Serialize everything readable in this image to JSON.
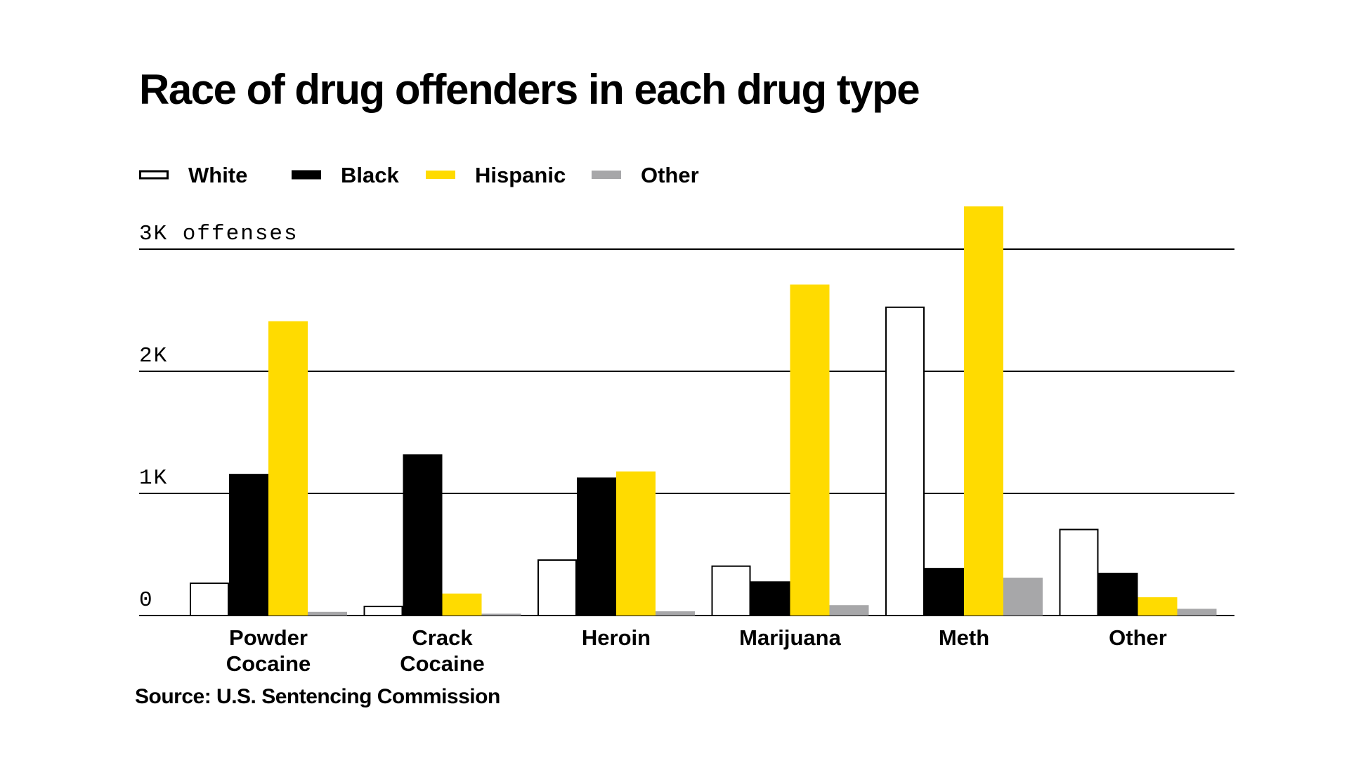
{
  "chart_data": {
    "type": "bar",
    "title": "Race of drug offenders in each drug type",
    "source": "Source: U.S. Sentencing Commission",
    "categories": [
      "Powder Cocaine",
      "Crack Cocaine",
      "Heroin",
      "Marijuana",
      "Meth",
      "Other"
    ],
    "series": [
      {
        "name": "White",
        "color": "#ffffff",
        "stroke": "#000000",
        "values": [
          270,
          80,
          460,
          410,
          2530,
          710
        ]
      },
      {
        "name": "Black",
        "color": "#000000",
        "stroke": "#000000",
        "values": [
          1160,
          1320,
          1130,
          280,
          390,
          350
        ]
      },
      {
        "name": "Hispanic",
        "color": "#ffdb00",
        "stroke": "none",
        "values": [
          2410,
          180,
          1180,
          2710,
          3350,
          150
        ]
      },
      {
        "name": "Other",
        "color": "#a7a7a9",
        "stroke": "none",
        "values": [
          30,
          15,
          35,
          85,
          310,
          55
        ]
      }
    ],
    "y_ticks": [
      {
        "value": 0,
        "label": "0"
      },
      {
        "value": 1000,
        "label": "1K"
      },
      {
        "value": 2000,
        "label": "2K"
      },
      {
        "value": 3000,
        "label": "3K offenses"
      }
    ],
    "ylim": [
      0,
      3400
    ],
    "grid": true,
    "legend_position": "top-left"
  }
}
